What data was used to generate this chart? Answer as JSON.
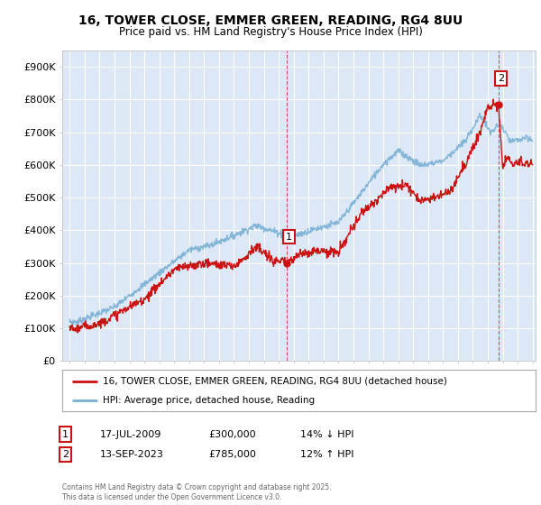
{
  "title": "16, TOWER CLOSE, EMMER GREEN, READING, RG4 8UU",
  "subtitle": "Price paid vs. HM Land Registry's House Price Index (HPI)",
  "ylabel_ticks": [
    "£0",
    "£100K",
    "£200K",
    "£300K",
    "£400K",
    "£500K",
    "£600K",
    "£700K",
    "£800K",
    "£900K"
  ],
  "ytick_values": [
    0,
    100000,
    200000,
    300000,
    400000,
    500000,
    600000,
    700000,
    800000,
    900000
  ],
  "ylim": [
    0,
    950000
  ],
  "xlim_start": 1994.5,
  "xlim_end": 2026.2,
  "bg_color": "#ffffff",
  "plot_bg": "#dce8f5",
  "grid_color": "#ffffff",
  "hpi_color": "#7ab0d4",
  "price_color": "#cc1111",
  "marker1_x": 2009.54,
  "marker1_y": 300000,
  "marker2_x": 2023.71,
  "marker2_y": 785000,
  "legend_label_price": "16, TOWER CLOSE, EMMER GREEN, READING, RG4 8UU (detached house)",
  "legend_label_hpi": "HPI: Average price, detached house, Reading",
  "sale1_label": "1",
  "sale1_date": "17-JUL-2009",
  "sale1_price": "£300,000",
  "sale1_hpi": "14% ↓ HPI",
  "sale2_label": "2",
  "sale2_date": "13-SEP-2023",
  "sale2_price": "£785,000",
  "sale2_hpi": "12% ↑ HPI",
  "footer": "Contains HM Land Registry data © Crown copyright and database right 2025.\nThis data is licensed under the Open Government Licence v3.0."
}
